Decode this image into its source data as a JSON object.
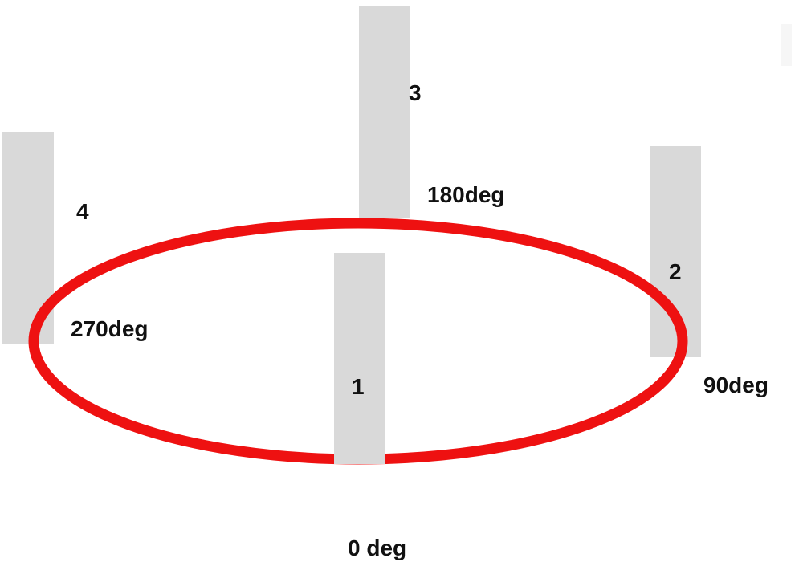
{
  "diagram": {
    "ring_color": "#ee1111",
    "card_color": "#d9d9d9",
    "text_color": "#111111",
    "cards": [
      {
        "number": "1",
        "angle_label": "0 deg"
      },
      {
        "number": "2",
        "angle_label": "90deg"
      },
      {
        "number": "3",
        "angle_label": "180deg"
      },
      {
        "number": "4",
        "angle_label": "270deg"
      }
    ]
  }
}
